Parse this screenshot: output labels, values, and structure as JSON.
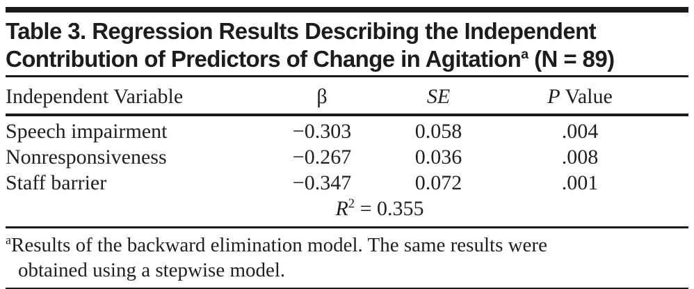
{
  "colors": {
    "text": "#221e1f",
    "rule": "#1b191a",
    "background": "#ffffff"
  },
  "title": {
    "line1": "Table 3. Regression Results Describing the Independent",
    "line2_main": "Contribution of Predictors of Change in Agitation",
    "footnote_marker": "a",
    "line2_tail": " (N = 89)"
  },
  "table": {
    "columns": {
      "variable": "Independent Variable",
      "beta": "β",
      "se": "SE",
      "p_italic": "P",
      "p_rest": " Value"
    },
    "rows": [
      {
        "label": "Speech impairment",
        "beta": "−0.303",
        "se": "0.058",
        "p": ".004"
      },
      {
        "label": "Nonresponsiveness",
        "beta": "−0.267",
        "se": "0.036",
        "p": ".008"
      },
      {
        "label": "Staff barrier",
        "beta": "−0.347",
        "se": "0.072",
        "p": ".001"
      }
    ],
    "r2": {
      "symbol": "R",
      "exponent": "2",
      "value": " = 0.355"
    }
  },
  "footnote": {
    "marker": "a",
    "line1": "Results of the backward elimination model. The same results were",
    "line2": "obtained using a stepwise model."
  }
}
